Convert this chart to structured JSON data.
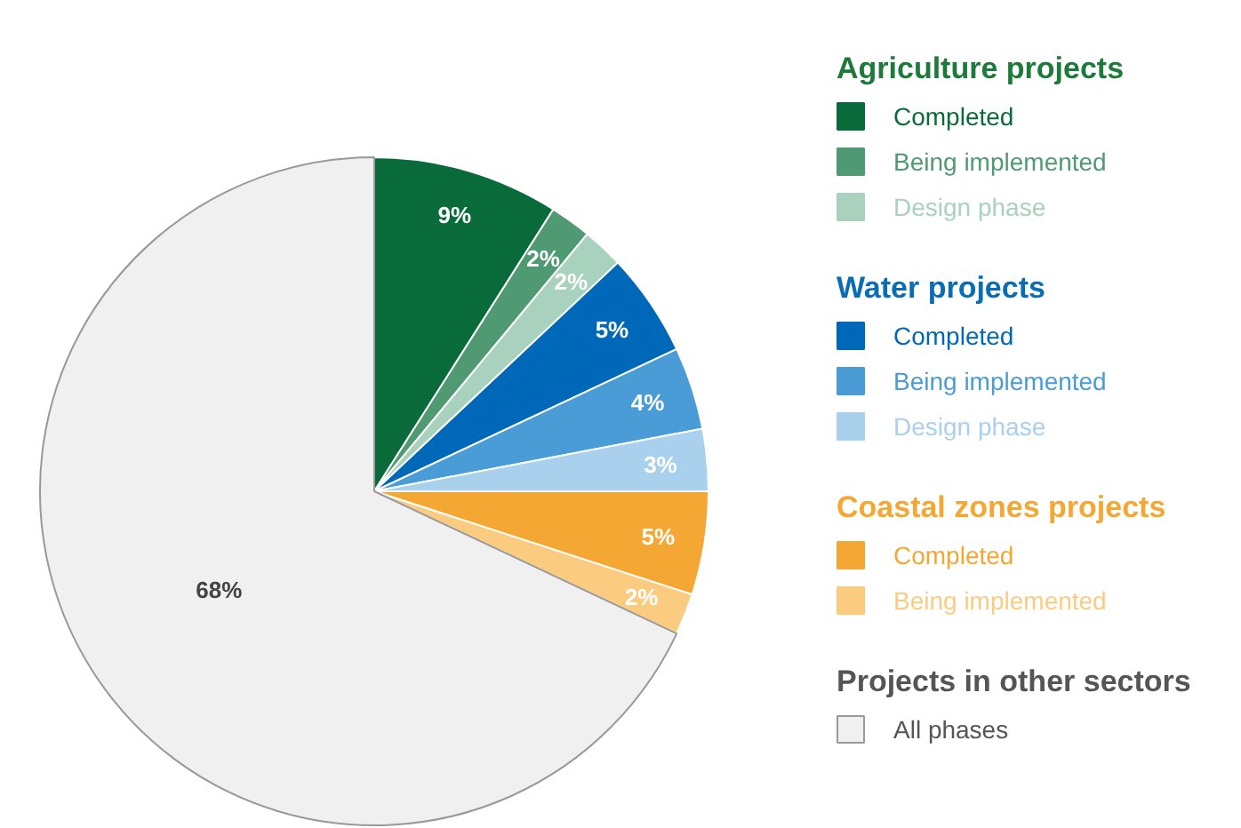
{
  "chart_data": {
    "type": "pie",
    "legend": "right",
    "categories": [
      "Agriculture projects",
      "Completed",
      "Being implemented",
      "Design phase",
      "Water projects",
      "Completed",
      "Being implemented",
      "Design phase",
      "Coastal zones projects",
      "Completed",
      "Being implemented",
      "Projects in other sectors",
      "All phases"
    ],
    "values": [
      null,
      9,
      2,
      2,
      null,
      5,
      4,
      3,
      null,
      5,
      2,
      null,
      68
    ],
    "value_labels": [
      null,
      "9%",
      "2%",
      "2%",
      null,
      "5%",
      "4%",
      "3%",
      null,
      "5%",
      "2%",
      null,
      "68%"
    ],
    "colors": [
      "#1e7a3a",
      "#0a6b3a",
      "#4f9a72",
      "#a8d2bd",
      "#0a6cb5",
      "#0068b8",
      "#4a9cd6",
      "#a9d1ee",
      "#f5a733",
      "#f5a733",
      "#fbcb80",
      "#555555",
      "#f0f0f0"
    ]
  }
}
